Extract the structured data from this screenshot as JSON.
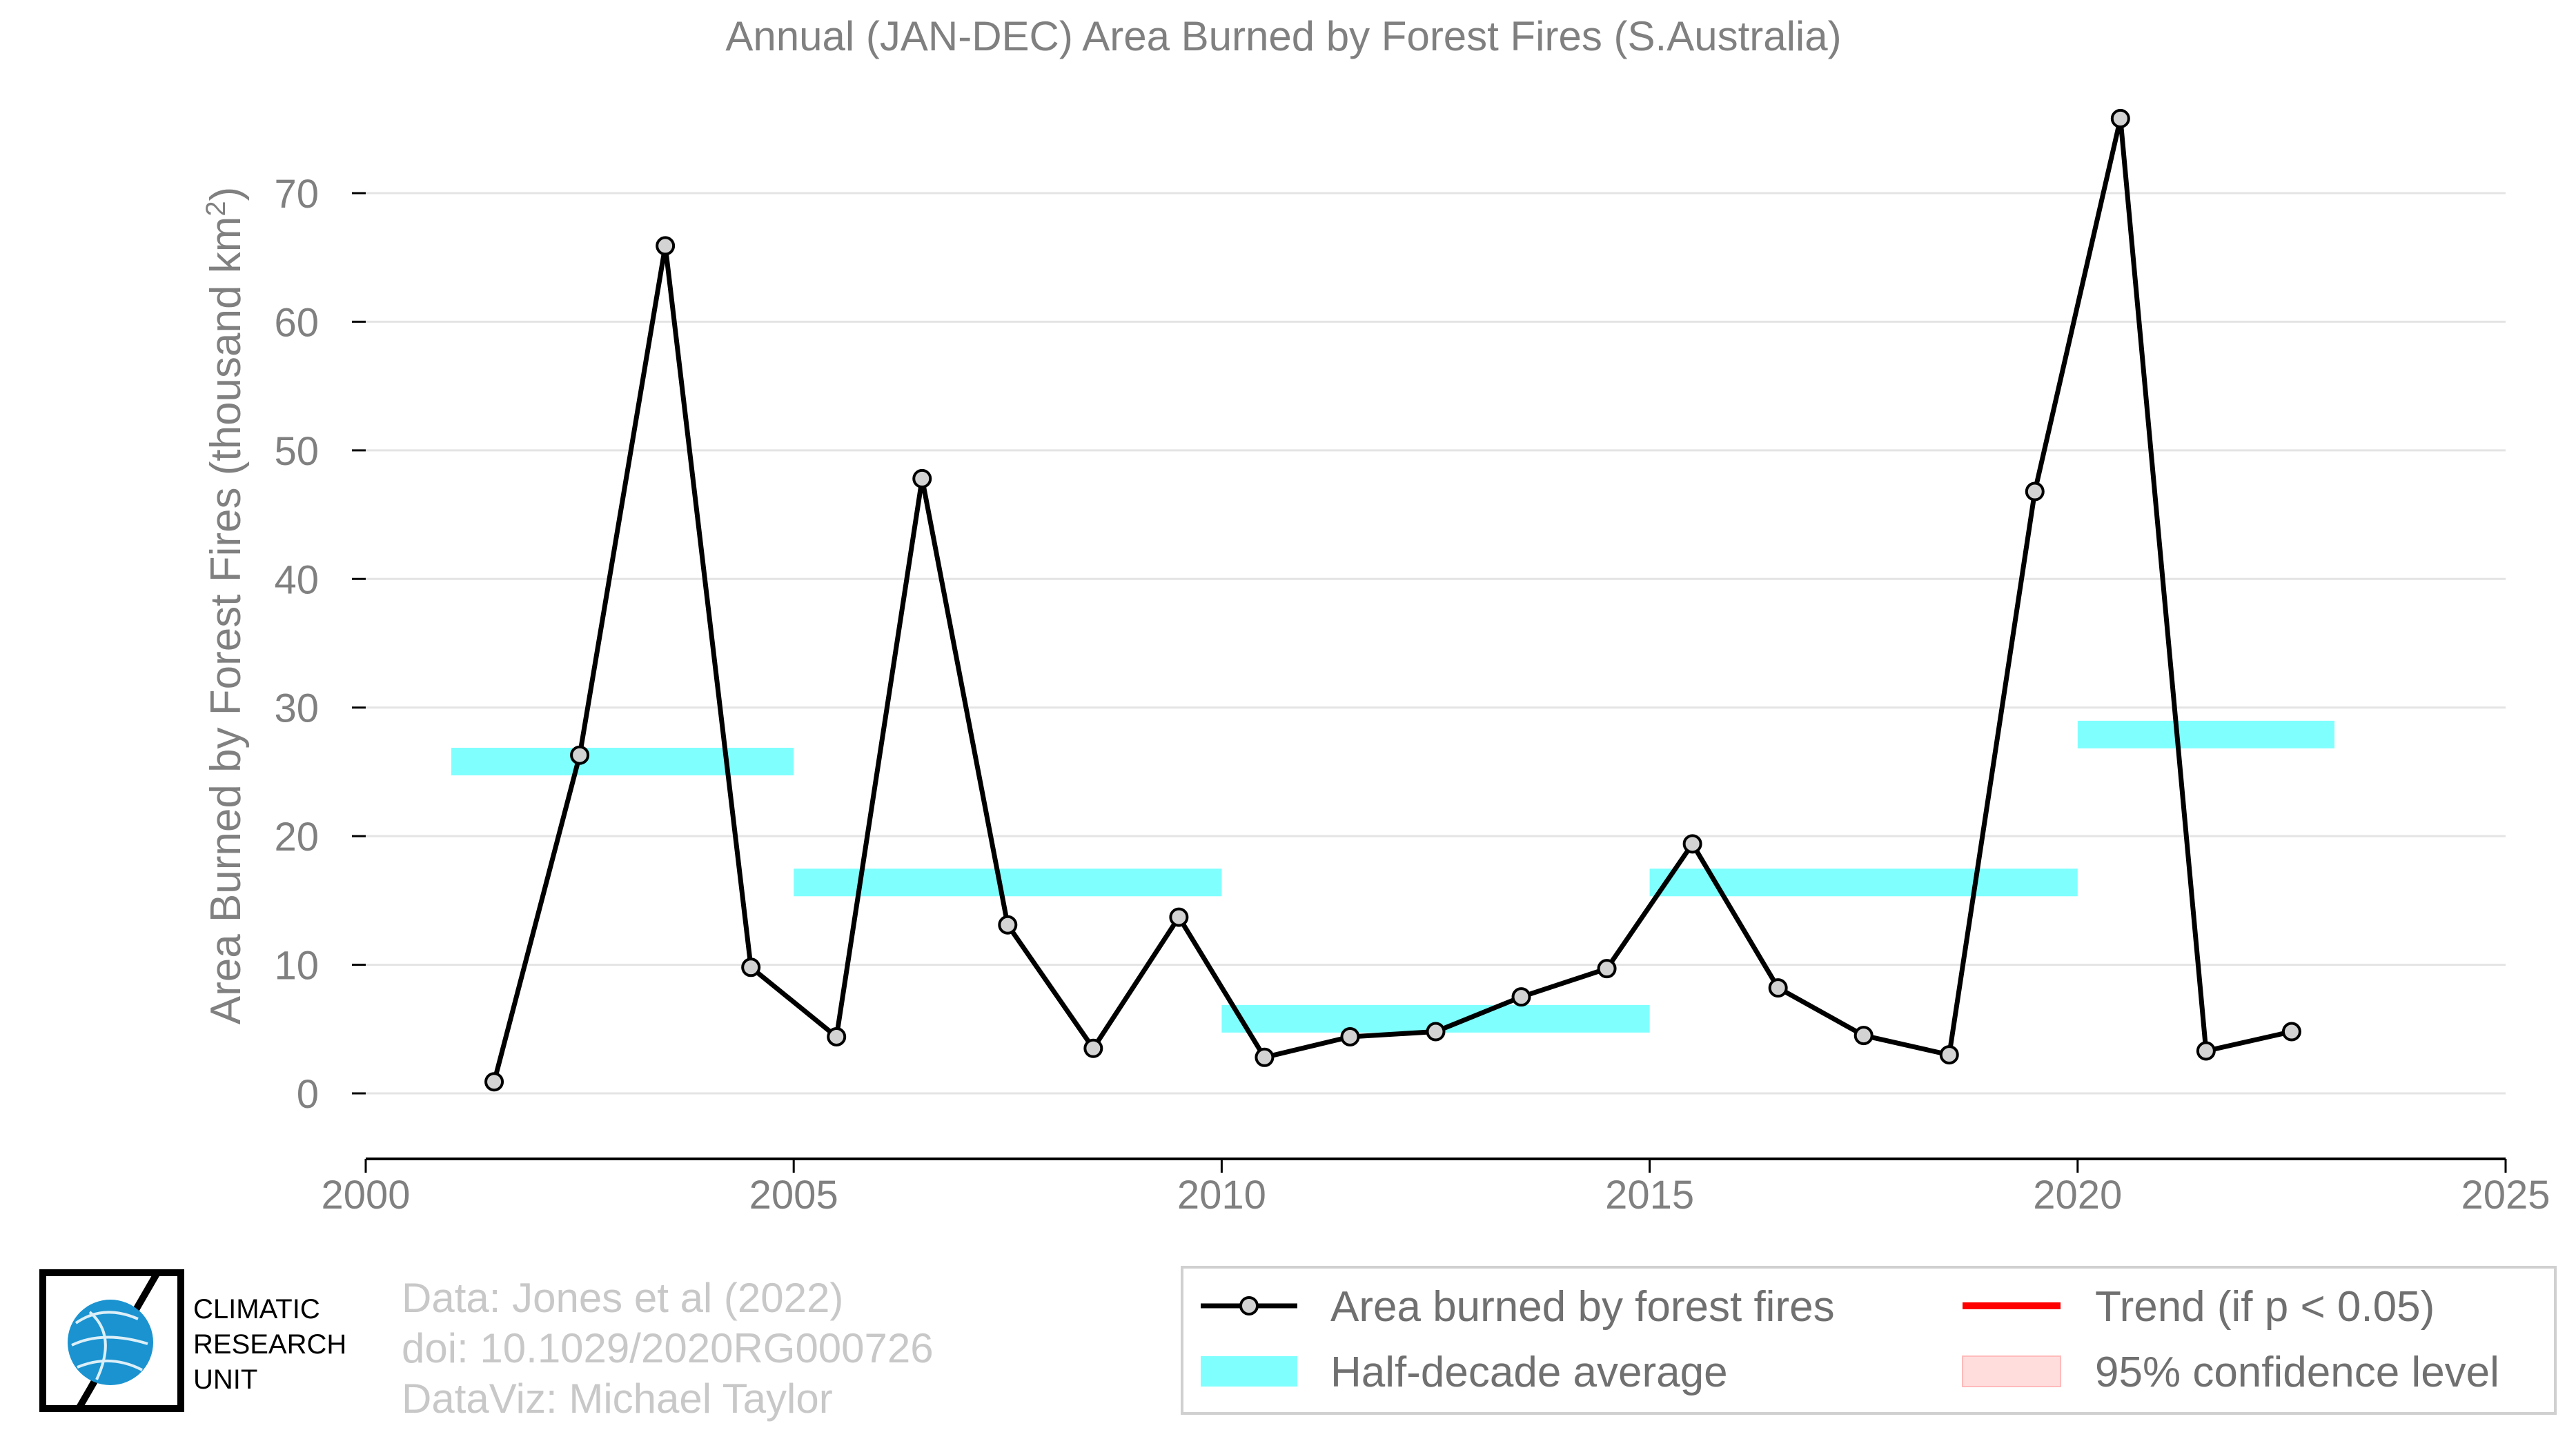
{
  "chart_data": {
    "type": "line",
    "title": "Annual (JAN-DEC) Area Burned by Forest Fires (S.Australia)",
    "ylabel_main": "Area Burned by Forest Fires (thousand km",
    "ylabel_sup": "2",
    "ylabel_end": ")",
    "xlim": [
      2000,
      2025
    ],
    "ylim": [
      -5,
      77
    ],
    "x_ticks": [
      2000,
      2005,
      2010,
      2015,
      2020,
      2025
    ],
    "y_ticks": [
      0,
      10,
      20,
      30,
      40,
      50,
      60,
      70
    ],
    "grid": "horizontal",
    "series": [
      {
        "name": "Area burned by forest fires",
        "color": "#000000",
        "marker_fill": "#d3d3d3",
        "x": [
          2001.5,
          2002.5,
          2003.5,
          2004.5,
          2005.5,
          2006.5,
          2007.5,
          2008.5,
          2009.5,
          2010.5,
          2011.5,
          2012.5,
          2013.5,
          2014.5,
          2015.5,
          2016.5,
          2017.5,
          2018.5,
          2019.5,
          2020.5,
          2021.5,
          2022.5
        ],
        "values": [
          0.9,
          26.3,
          65.9,
          9.8,
          4.4,
          47.8,
          13.1,
          3.5,
          13.7,
          2.8,
          4.4,
          4.8,
          7.5,
          9.7,
          19.4,
          8.2,
          4.5,
          3.0,
          46.8,
          75.8,
          3.3,
          4.8
        ]
      }
    ],
    "half_decade_average": {
      "name": "Half-decade average",
      "color": "#80ffff",
      "segments": [
        {
          "x": [
            2001,
            2005
          ],
          "value": 25.8
        },
        {
          "x": [
            2005,
            2010
          ],
          "value": 16.4
        },
        {
          "x": [
            2010,
            2015
          ],
          "value": 5.8
        },
        {
          "x": [
            2015,
            2020
          ],
          "value": 16.4
        },
        {
          "x": [
            2020,
            2023
          ],
          "value": 27.9
        }
      ]
    },
    "legend": {
      "placement": "bottom-right",
      "items": [
        {
          "label": "Area burned by forest fires",
          "kind": "line-marker",
          "color": "#000000"
        },
        {
          "label": "Trend (if p < 0.05)",
          "kind": "line",
          "color": "#ff0000"
        },
        {
          "label": "Half-decade average",
          "kind": "band",
          "color": "#80ffff"
        },
        {
          "label": "95% confidence level",
          "kind": "band",
          "color": "#ffdddd"
        }
      ]
    }
  },
  "credits": {
    "line1": "Data: Jones et al (2022)",
    "line2": "doi: 10.1029/2020RG000726",
    "line3": "DataViz: Michael Taylor"
  },
  "logo": {
    "line1": "CLIMATIC",
    "line2": "RESEARCH",
    "line3": "UNIT",
    "globe_color": "#1a93d0"
  }
}
